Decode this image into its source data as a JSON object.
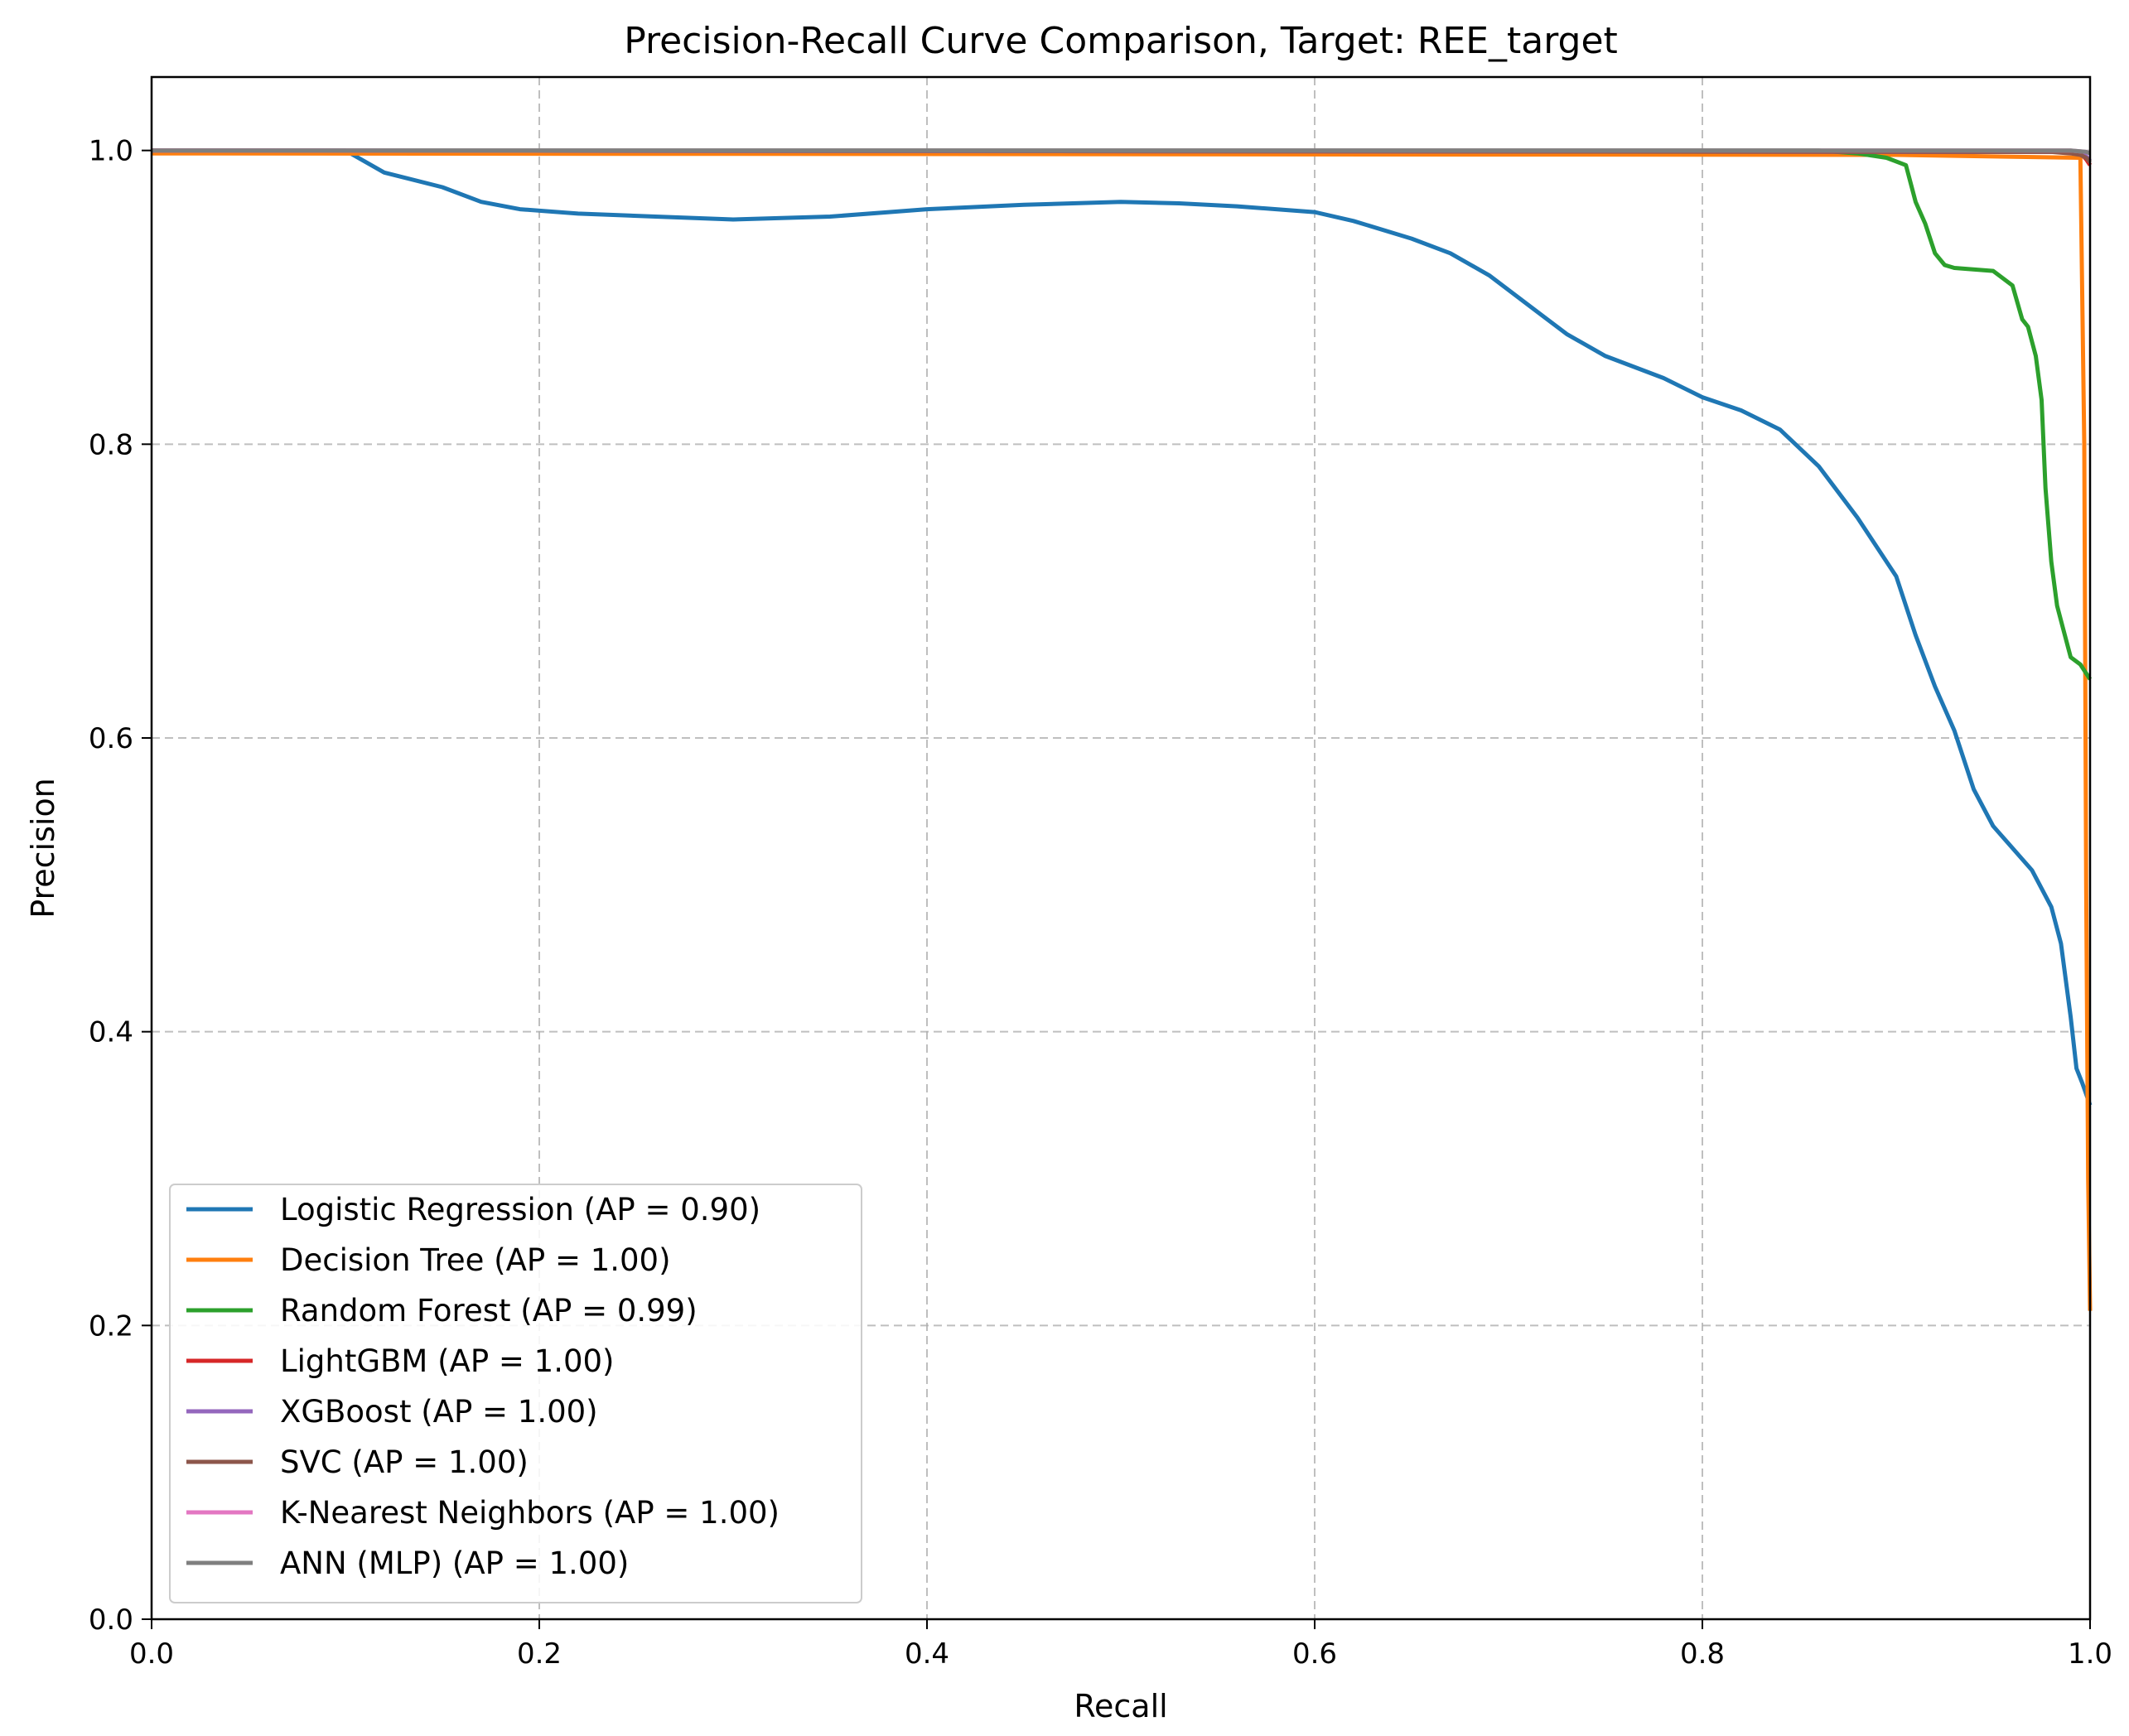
{
  "chart_data": {
    "type": "line",
    "title": "Precision-Recall Curve Comparison, Target: REE_target",
    "xlabel": "Recall",
    "ylabel": "Precision",
    "xlim": [
      0.0,
      1.0
    ],
    "ylim": [
      0.0,
      1.05
    ],
    "xticks": [
      "0.0",
      "0.2",
      "0.4",
      "0.6",
      "0.8",
      "1.0"
    ],
    "yticks": [
      "0.0",
      "0.2",
      "0.4",
      "0.6",
      "0.8",
      "1.0"
    ],
    "grid": true,
    "legend_position": "lower-left",
    "series": [
      {
        "name": "Logistic Regression (AP = 0.90)",
        "color": "#1f77b4",
        "x": [
          0.0,
          0.05,
          0.1,
          0.12,
          0.15,
          0.17,
          0.19,
          0.22,
          0.26,
          0.3,
          0.35,
          0.4,
          0.45,
          0.5,
          0.53,
          0.56,
          0.6,
          0.62,
          0.65,
          0.67,
          0.69,
          0.71,
          0.73,
          0.75,
          0.78,
          0.8,
          0.82,
          0.84,
          0.86,
          0.88,
          0.9,
          0.91,
          0.92,
          0.93,
          0.94,
          0.95,
          0.96,
          0.97,
          0.98,
          0.985,
          0.99,
          0.993,
          0.996,
          1.0
        ],
        "y": [
          1.0,
          1.0,
          1.0,
          0.985,
          0.975,
          0.965,
          0.96,
          0.957,
          0.955,
          0.953,
          0.955,
          0.96,
          0.963,
          0.965,
          0.964,
          0.962,
          0.958,
          0.952,
          0.94,
          0.93,
          0.915,
          0.895,
          0.875,
          0.86,
          0.845,
          0.832,
          0.823,
          0.81,
          0.785,
          0.75,
          0.71,
          0.67,
          0.635,
          0.605,
          0.565,
          0.54,
          0.525,
          0.51,
          0.485,
          0.46,
          0.41,
          0.375,
          0.365,
          0.35
        ]
      },
      {
        "name": "Decision Tree (AP = 1.00)",
        "color": "#ff7f0e",
        "x": [
          0.0,
          0.9,
          0.995,
          0.997,
          0.998,
          0.999,
          1.0
        ],
        "y": [
          0.998,
          0.997,
          0.995,
          0.8,
          0.5,
          0.3,
          0.21
        ]
      },
      {
        "name": "Random Forest (AP = 0.99)",
        "color": "#2ca02c",
        "x": [
          0.0,
          0.86,
          0.88,
          0.895,
          0.905,
          0.91,
          0.915,
          0.92,
          0.925,
          0.93,
          0.95,
          0.96,
          0.965,
          0.968,
          0.972,
          0.975,
          0.977,
          0.98,
          0.983,
          0.986,
          0.99,
          0.995,
          1.0
        ],
        "y": [
          1.0,
          1.0,
          0.998,
          0.995,
          0.99,
          0.965,
          0.95,
          0.93,
          0.922,
          0.92,
          0.918,
          0.908,
          0.885,
          0.88,
          0.86,
          0.83,
          0.77,
          0.72,
          0.69,
          0.675,
          0.655,
          0.65,
          0.64
        ]
      },
      {
        "name": "LightGBM (AP = 1.00)",
        "color": "#d62728",
        "x": [
          0.0,
          0.99,
          0.996,
          0.998,
          1.0
        ],
        "y": [
          1.0,
          0.999,
          0.997,
          0.994,
          0.99
        ]
      },
      {
        "name": "XGBoost (AP = 1.00)",
        "color": "#9467bd",
        "x": [
          0.0,
          0.99,
          0.996,
          0.998,
          1.0
        ],
        "y": [
          1.0,
          0.999,
          0.998,
          0.996,
          0.993
        ]
      },
      {
        "name": "SVC (AP = 1.00)",
        "color": "#8c564b",
        "x": [
          0.0,
          0.98,
          0.99,
          0.995,
          0.998,
          1.0
        ],
        "y": [
          1.0,
          0.999,
          0.998,
          0.997,
          0.995,
          0.992
        ]
      },
      {
        "name": "K-Nearest Neighbors (AP = 1.00)",
        "color": "#e377c2",
        "x": [
          0.0,
          0.99,
          0.998,
          1.0
        ],
        "y": [
          1.0,
          1.0,
          0.999,
          0.998
        ]
      },
      {
        "name": "ANN (MLP) (AP = 1.00)",
        "color": "#7f7f7f",
        "x": [
          0.0,
          0.99,
          0.998,
          1.0
        ],
        "y": [
          1.0,
          1.0,
          0.999,
          0.998
        ]
      }
    ]
  }
}
